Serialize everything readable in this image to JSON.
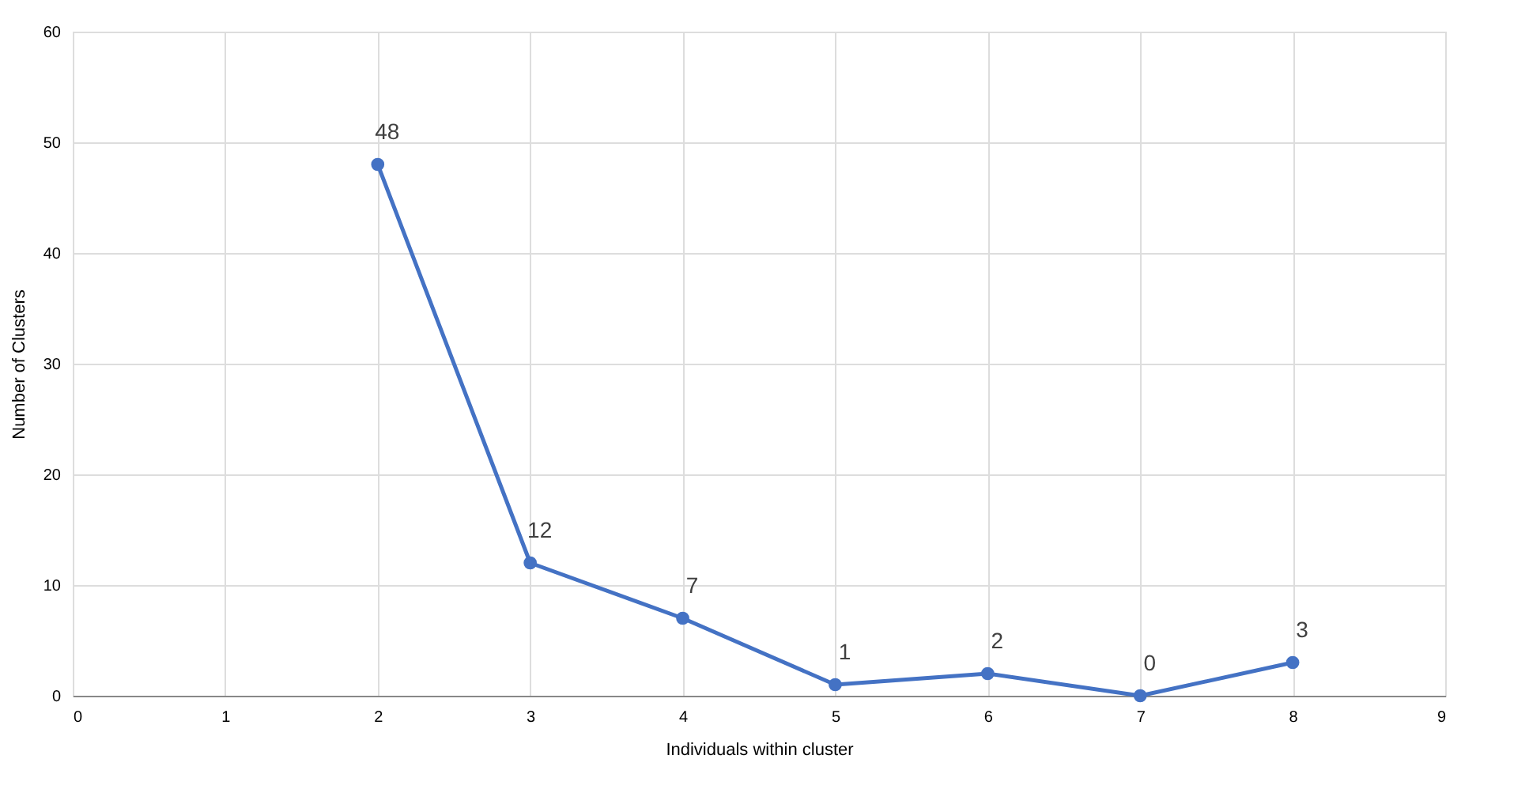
{
  "chart_data": {
    "type": "line",
    "xlabel": "Individuals within cluster",
    "ylabel": "Number of Clusters",
    "x": [
      2,
      3,
      4,
      5,
      6,
      7,
      8
    ],
    "series": [
      {
        "color": "#4472c4",
        "values": [
          48,
          12,
          7,
          1,
          2,
          0,
          3
        ]
      }
    ],
    "xlim": [
      0,
      9
    ],
    "xticks": [
      0,
      1,
      2,
      3,
      4,
      5,
      6,
      7,
      8,
      9
    ],
    "ylim": [
      0,
      60
    ],
    "yticks": [
      0,
      10,
      20,
      30,
      40,
      50,
      60
    ],
    "grid": true,
    "marker": "circle",
    "line_style": "solid",
    "data_labels": true
  }
}
